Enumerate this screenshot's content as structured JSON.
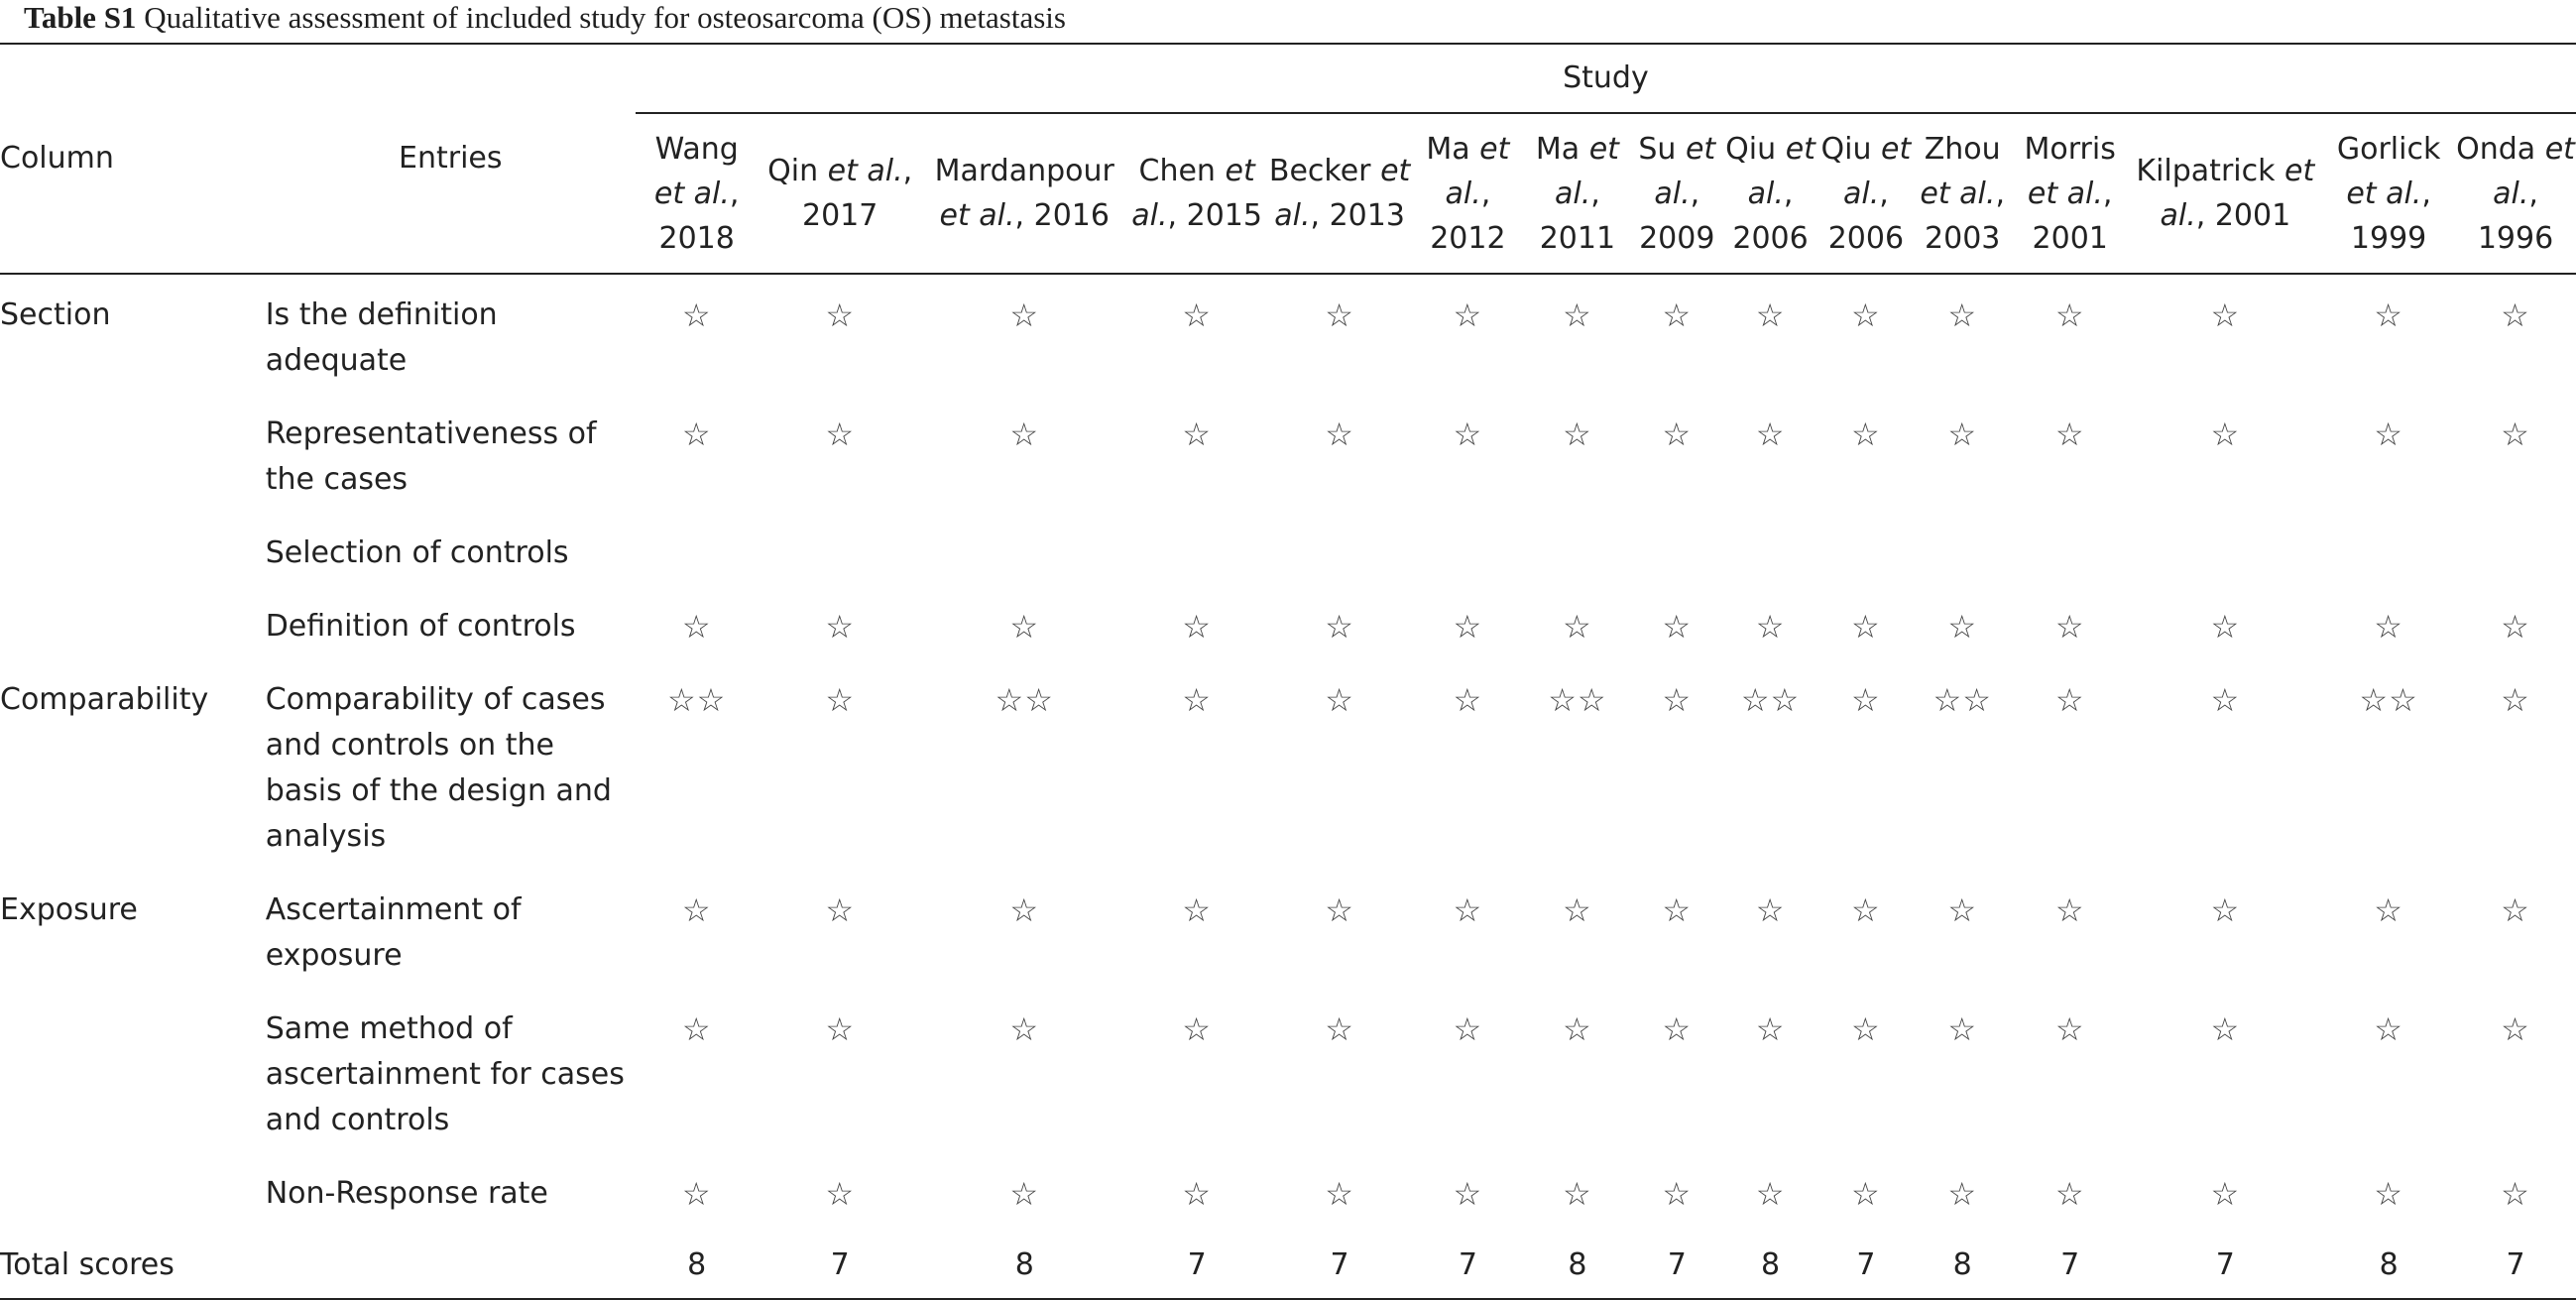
{
  "caption": {
    "label": "Table S1",
    "text": "Qualitative assessment of included study for osteosarcoma (OS) metastasis"
  },
  "header": {
    "column": "Column",
    "entries": "Entries",
    "study": "Study",
    "studies": [
      {
        "pre": "Wang",
        "etal": "et al.",
        "post": ", 2018"
      },
      {
        "pre": "Qin",
        "etal": "et al.",
        "post": ", 2017"
      },
      {
        "pre": "Mardanpour",
        "etal": "et al.",
        "post": ", 2016"
      },
      {
        "pre": "Chen",
        "etal": "et al.",
        "post": ", 2015"
      },
      {
        "pre": "Becker",
        "etal": "et al.",
        "post": ", 2013"
      },
      {
        "pre": "Ma",
        "etal": "et al.",
        "post": ", 2012"
      },
      {
        "pre": "Ma",
        "etal": "et al.",
        "post": ", 2011"
      },
      {
        "pre": "Su",
        "etal": "et al.",
        "post": ", 2009"
      },
      {
        "pre": "Qiu",
        "etal": "et al.",
        "post": ", 2006"
      },
      {
        "pre": "Qiu",
        "etal": "et al.",
        "post": ", 2006"
      },
      {
        "pre": "Zhou",
        "etal": "et al.",
        "post": ", 2003"
      },
      {
        "pre": "Morris",
        "etal": "et al.",
        "post": ", 2001"
      },
      {
        "pre": "Kilpatrick",
        "etal": "et al.",
        "post": ", 2001"
      },
      {
        "pre": "Gorlick",
        "etal": "et al.",
        "post": ", 1999"
      },
      {
        "pre": "Onda",
        "etal": "et al.",
        "post": ", 1996"
      }
    ]
  },
  "rows": [
    {
      "section": "Section",
      "entry": "Is the definition adequate",
      "cells": [
        "☆",
        "☆",
        "☆",
        "☆",
        "☆",
        "☆",
        "☆",
        "☆",
        "☆",
        "☆",
        "☆",
        "☆",
        "☆",
        "☆",
        "☆"
      ]
    },
    {
      "section": "",
      "entry": "Representativeness of the cases",
      "cells": [
        "☆",
        "☆",
        "☆",
        "☆",
        "☆",
        "☆",
        "☆",
        "☆",
        "☆",
        "☆",
        "☆",
        "☆",
        "☆",
        "☆",
        "☆"
      ]
    },
    {
      "section": "",
      "entry": "Selection of controls",
      "cells": [
        "",
        "",
        "",
        "",
        "",
        "",
        "",
        "",
        "",
        "",
        "",
        "",
        "",
        "",
        ""
      ]
    },
    {
      "section": "",
      "entry": "Definition of controls",
      "cells": [
        "☆",
        "☆",
        "☆",
        "☆",
        "☆",
        "☆",
        "☆",
        "☆",
        "☆",
        "☆",
        "☆",
        "☆",
        "☆",
        "☆",
        "☆"
      ]
    },
    {
      "section": "Comparability",
      "entry": "Comparability of cases and controls on the basis of the design and analysis",
      "cells": [
        "☆☆",
        "☆",
        "☆☆",
        "☆",
        "☆",
        "☆",
        "☆☆",
        "☆",
        "☆☆",
        "☆",
        "☆☆",
        "☆",
        "☆",
        "☆☆",
        "☆"
      ]
    },
    {
      "section": "Exposure",
      "entry": "Ascertainment of exposure",
      "cells": [
        "☆",
        "☆",
        "☆",
        "☆",
        "☆",
        "☆",
        "☆",
        "☆",
        "☆",
        "☆",
        "☆",
        "☆",
        "☆",
        "☆",
        "☆"
      ]
    },
    {
      "section": "",
      "entry": "Same method of ascertainment for cases and controls",
      "cells": [
        "☆",
        "☆",
        "☆",
        "☆",
        "☆",
        "☆",
        "☆",
        "☆",
        "☆",
        "☆",
        "☆",
        "☆",
        "☆",
        "☆",
        "☆"
      ]
    },
    {
      "section": "",
      "entry": "Non-Response rate",
      "cells": [
        "☆",
        "☆",
        "☆",
        "☆",
        "☆",
        "☆",
        "☆",
        "☆",
        "☆",
        "☆",
        "☆",
        "☆",
        "☆",
        "☆",
        "☆"
      ]
    }
  ],
  "total": {
    "label": "Total scores",
    "scores": [
      "8",
      "7",
      "8",
      "7",
      "7",
      "7",
      "8",
      "7",
      "8",
      "7",
      "8",
      "7",
      "7",
      "8",
      "7"
    ]
  }
}
